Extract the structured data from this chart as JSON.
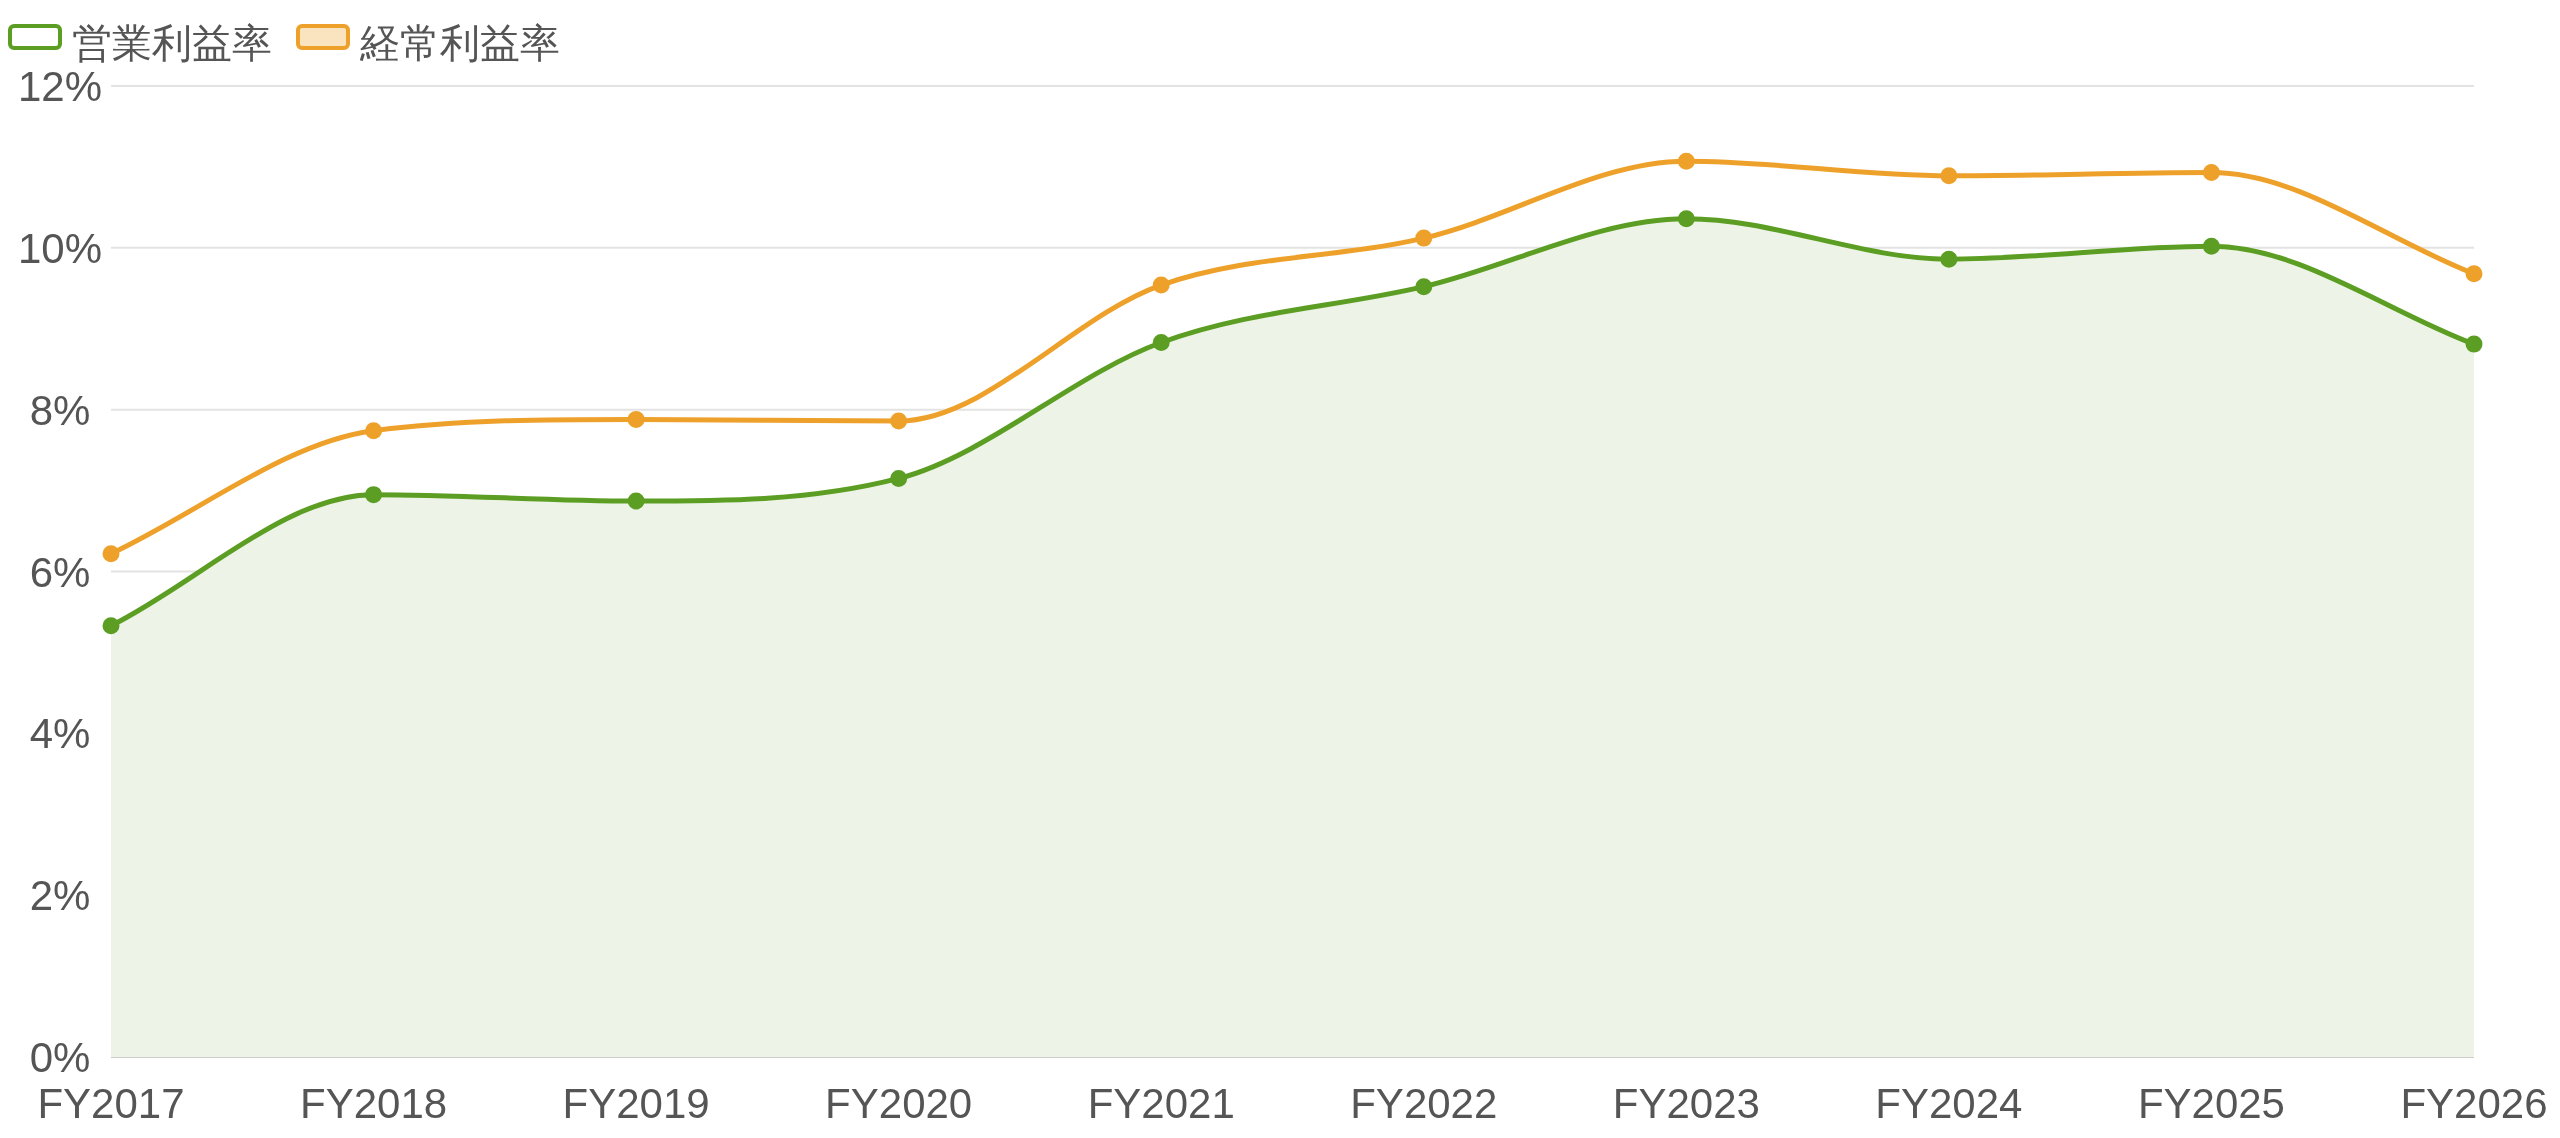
{
  "chart_data": {
    "type": "line",
    "categories": [
      "FY2017",
      "FY2018",
      "FY2019",
      "FY2020",
      "FY2021",
      "FY2022",
      "FY2023",
      "FY2024",
      "FY2025",
      "FY2026"
    ],
    "series": [
      {
        "name": "営業利益率",
        "type": "area",
        "color": "#5b9e23",
        "values": [
          5.33,
          6.95,
          6.87,
          7.15,
          8.83,
          9.52,
          10.36,
          9.86,
          10.02,
          8.81
        ]
      },
      {
        "name": "経常利益率",
        "color": "#eea12a",
        "values": [
          6.22,
          7.74,
          7.88,
          7.86,
          9.54,
          10.12,
          11.07,
          10.89,
          10.93,
          9.68
        ]
      }
    ],
    "ylim": [
      0,
      12
    ],
    "yticks": [
      {
        "value": 0,
        "label": "0%"
      },
      {
        "value": 2,
        "label": "2%"
      },
      {
        "value": 4,
        "label": "4%"
      },
      {
        "value": 6,
        "label": "6%"
      },
      {
        "value": 8,
        "label": "8%"
      },
      {
        "value": 10,
        "label": "10%"
      },
      {
        "value": 12,
        "label": "12%"
      }
    ],
    "grid": "y",
    "legend": "top left",
    "marker": "circle",
    "line_style": "solid"
  }
}
